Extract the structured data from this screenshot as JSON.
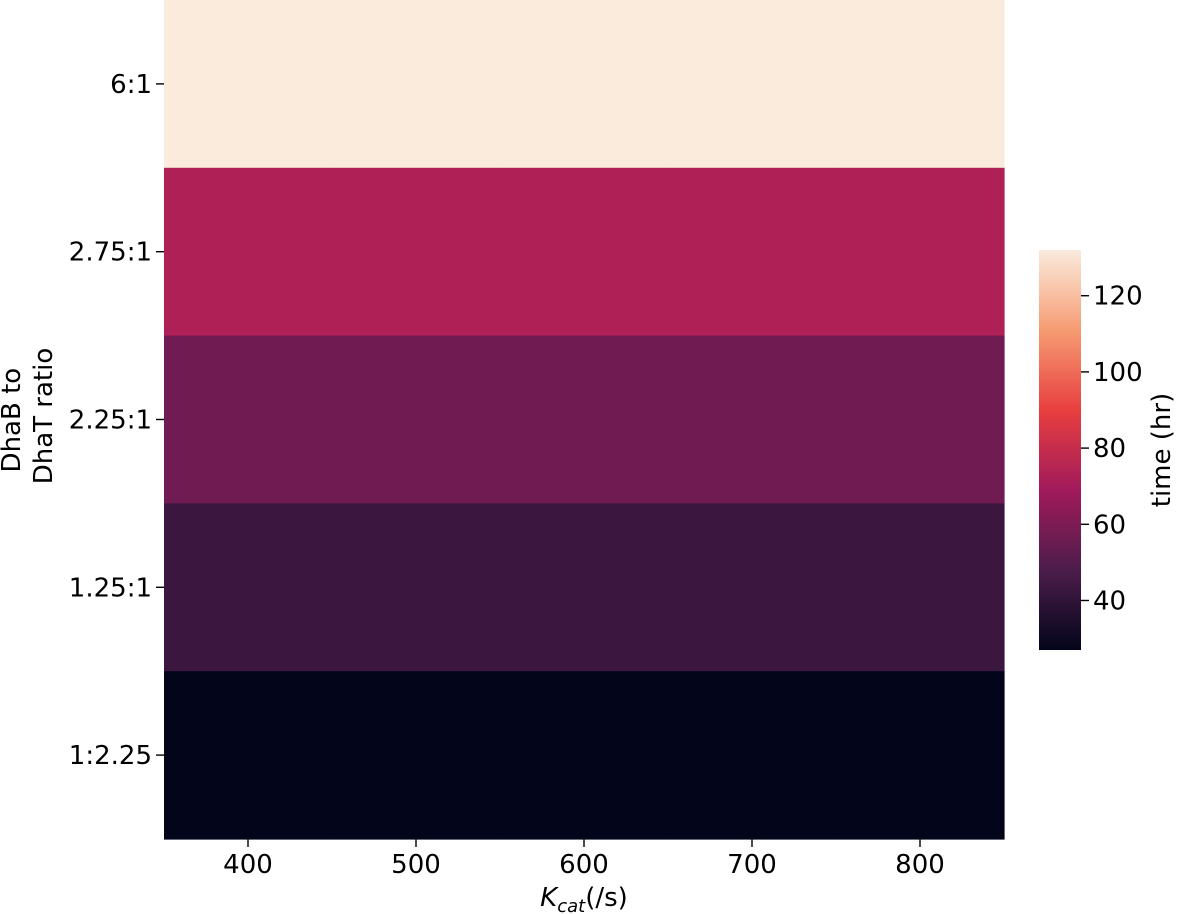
{
  "chart_data": {
    "type": "heatmap",
    "title": "",
    "xlabel": {
      "main": "K",
      "sub": "cat",
      "suffix": "(/s)"
    },
    "ylabel_lines": [
      "DhaB to",
      "DhaT ratio"
    ],
    "x_tick_labels": [
      "400",
      "500",
      "600",
      "700",
      "800"
    ],
    "x_ticks": [
      400,
      500,
      600,
      700,
      800
    ],
    "xlim": [
      350,
      850
    ],
    "rows": [
      "6:1",
      "2.75:1",
      "2.25:1",
      "1.25:1",
      "1:2.25"
    ],
    "values": [
      [
        132,
        132,
        132,
        132,
        132
      ],
      [
        73,
        73,
        73,
        73,
        73
      ],
      [
        57,
        57,
        57,
        57,
        57
      ],
      [
        43,
        43,
        43,
        43,
        43
      ],
      [
        27,
        27,
        27,
        27,
        27
      ]
    ],
    "colorbar": {
      "label": "time (hr)",
      "range": [
        27,
        132
      ],
      "tick_labels": [
        "40",
        "60",
        "80",
        "100",
        "120"
      ],
      "ticks": [
        40,
        60,
        80,
        100,
        120
      ],
      "colormap": "rocket",
      "colors": [
        "#03051a",
        "#4c1d4b",
        "#a11a5b",
        "#e83f3f",
        "#f69c73",
        "#faebdd"
      ]
    }
  }
}
